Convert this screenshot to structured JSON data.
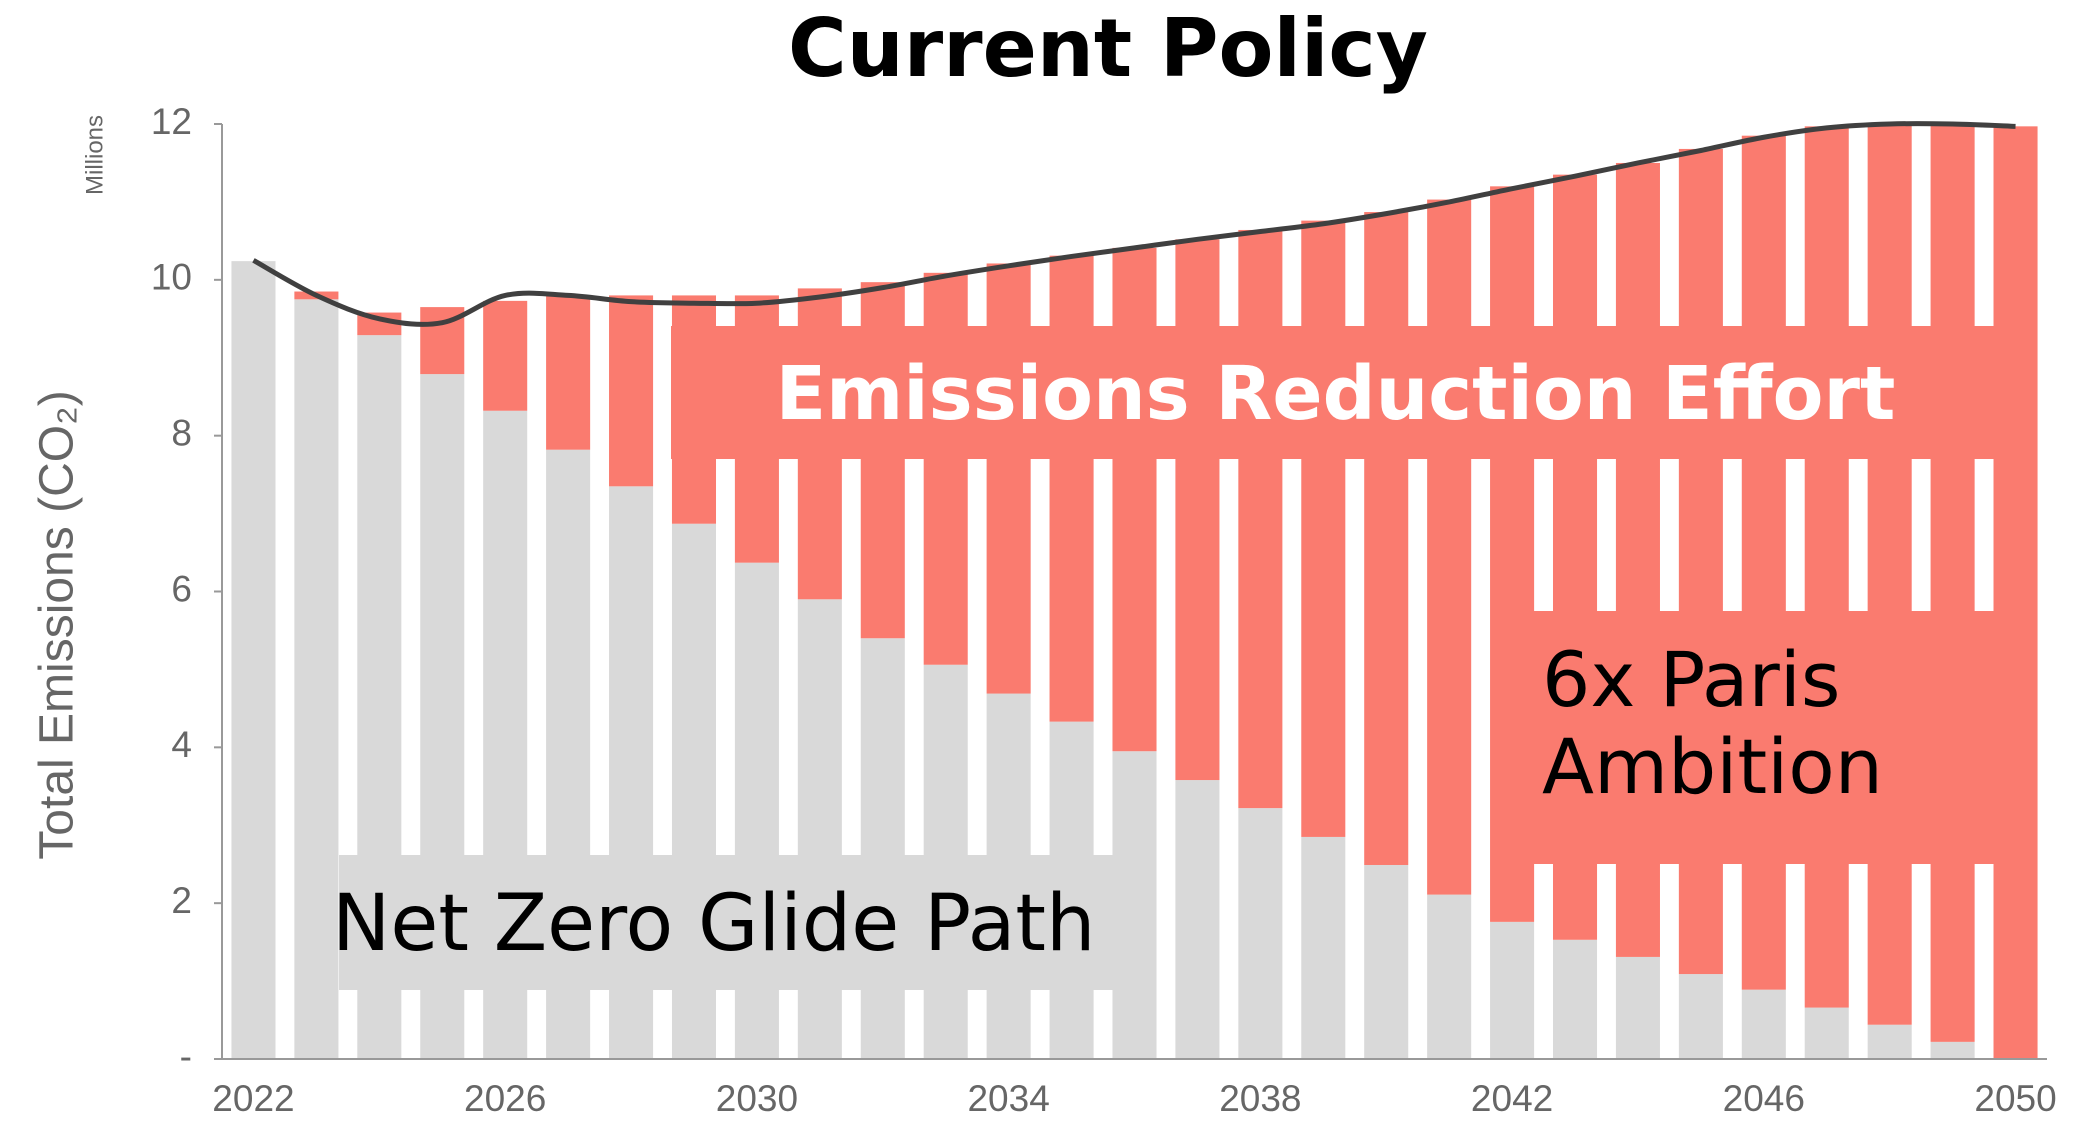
{
  "chart_data": {
    "type": "stacked-bar-line",
    "title": "Current Policy",
    "y_label": "Total Emissions (CO₂)",
    "y_unit": "Millions",
    "categories": [
      "2022",
      null,
      null,
      null,
      "2026",
      null,
      null,
      null,
      "2030",
      null,
      null,
      null,
      "2034",
      null,
      null,
      null,
      "2038",
      null,
      null,
      null,
      "2042",
      null,
      null,
      null,
      "2046",
      null,
      null,
      null,
      "2050"
    ],
    "series": [
      {
        "name": "Net Zero Glide Path",
        "color": "#d9d9d9",
        "values": [
          10.24,
          9.75,
          9.29,
          8.79,
          8.32,
          7.82,
          7.35,
          6.87,
          6.37,
          5.9,
          5.4,
          5.06,
          4.69,
          4.33,
          3.95,
          3.58,
          3.22,
          2.85,
          2.49,
          2.11,
          1.76,
          1.53,
          1.31,
          1.09,
          0.89,
          0.66,
          0.44,
          0.22,
          0
        ]
      },
      {
        "name": "Emissions Reduction Effort",
        "color": "#fa7b6f",
        "values": [
          0,
          0.1,
          0.29,
          0.86,
          1.41,
          1.98,
          2.45,
          2.93,
          3.43,
          3.99,
          4.57,
          5.03,
          5.52,
          5.98,
          6.46,
          6.94,
          7.42,
          7.91,
          8.38,
          8.92,
          9.44,
          9.82,
          10.19,
          10.59,
          10.96,
          11.31,
          11.56,
          11.78,
          11.97
        ]
      }
    ],
    "line": {
      "color": "#404040",
      "values": [
        10.25,
        9.8,
        9.5,
        9.45,
        9.8,
        9.8,
        9.72,
        9.7,
        9.7,
        9.78,
        9.9,
        10.05,
        10.18,
        10.3,
        10.41,
        10.52,
        10.62,
        10.72,
        10.85,
        11.0,
        11.17,
        11.33,
        11.5,
        11.66,
        11.83,
        11.95,
        12.0,
        12.0,
        11.97
      ]
    },
    "ylim": [
      0,
      12
    ],
    "yticks": [
      {
        "value": 0,
        "label": "-"
      },
      2,
      4,
      6,
      8,
      10,
      12
    ],
    "annotations": [
      "Emissions Reduction Effort",
      "Net Zero Glide Path",
      "6x Paris Ambition"
    ]
  }
}
